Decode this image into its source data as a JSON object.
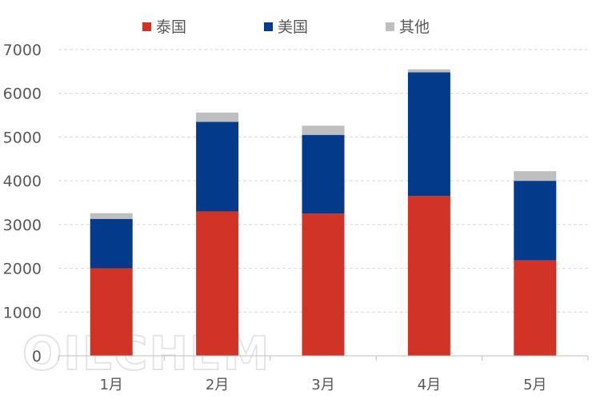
{
  "chart_data": {
    "type": "bar",
    "stacked": true,
    "categories": [
      "1月",
      "2月",
      "3月",
      "4月",
      "5月"
    ],
    "series": [
      {
        "name": "泰国",
        "color": "#D13327",
        "values": [
          2000,
          3300,
          3250,
          3650,
          2180
        ]
      },
      {
        "name": "美国",
        "color": "#033A8A",
        "values": [
          1130,
          2050,
          1800,
          2830,
          1820
        ]
      },
      {
        "name": "其他",
        "color": "#BFBFBF",
        "values": [
          130,
          210,
          210,
          70,
          220
        ]
      }
    ],
    "ylim": [
      0,
      7000
    ],
    "yticks": [
      0,
      1000,
      2000,
      3000,
      4000,
      5000,
      6000,
      7000
    ],
    "grid": true,
    "legend_position": "top",
    "watermark": "OILCHEM"
  }
}
